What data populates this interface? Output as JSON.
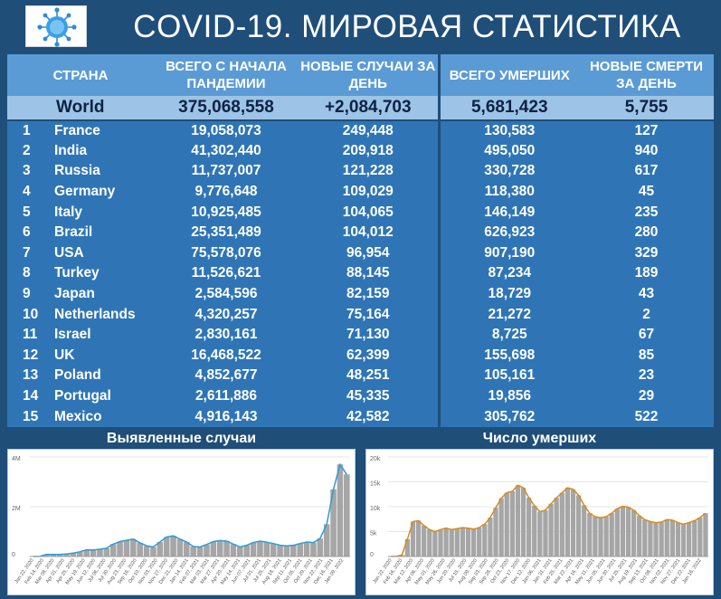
{
  "header": {
    "title": "COVID-19. МИРОВАЯ СТАТИСТИКА",
    "logo_icon": "coronavirus-icon"
  },
  "table": {
    "columns": {
      "country": "СТРАНА",
      "total_cases": "ВСЕГО С НАЧАЛА ПАНДЕМИИ",
      "new_cases": "НОВЫЕ СЛУЧАИ ЗА ДЕНЬ",
      "total_deaths": "ВСЕГО УМЕРШИХ",
      "new_deaths": "НОВЫЕ СМЕРТИ ЗА ДЕНЬ"
    },
    "world": {
      "name": "World",
      "total_cases": "375,068,558",
      "new_cases": "+2,084,703",
      "total_deaths": "5,681,423",
      "new_deaths": "5,755"
    },
    "rows": [
      {
        "rank": "1",
        "country": "France",
        "total_cases": "19,058,073",
        "new_cases": "249,448",
        "total_deaths": "130,583",
        "new_deaths": "127"
      },
      {
        "rank": "2",
        "country": "India",
        "total_cases": "41,302,440",
        "new_cases": "209,918",
        "total_deaths": "495,050",
        "new_deaths": "940"
      },
      {
        "rank": "3",
        "country": "Russia",
        "total_cases": "11,737,007",
        "new_cases": "121,228",
        "total_deaths": "330,728",
        "new_deaths": "617"
      },
      {
        "rank": "4",
        "country": "Germany",
        "total_cases": "9,776,648",
        "new_cases": "109,029",
        "total_deaths": "118,380",
        "new_deaths": "45"
      },
      {
        "rank": "5",
        "country": "Italy",
        "total_cases": "10,925,485",
        "new_cases": "104,065",
        "total_deaths": "146,149",
        "new_deaths": "235"
      },
      {
        "rank": "6",
        "country": "Brazil",
        "total_cases": "25,351,489",
        "new_cases": "104,012",
        "total_deaths": "626,923",
        "new_deaths": "280"
      },
      {
        "rank": "7",
        "country": "USA",
        "total_cases": "75,578,076",
        "new_cases": "96,954",
        "total_deaths": "907,190",
        "new_deaths": "329"
      },
      {
        "rank": "8",
        "country": "Turkey",
        "total_cases": "11,526,621",
        "new_cases": "88,145",
        "total_deaths": "87,234",
        "new_deaths": "189"
      },
      {
        "rank": "9",
        "country": "Japan",
        "total_cases": "2,584,596",
        "new_cases": "82,159",
        "total_deaths": "18,729",
        "new_deaths": "43"
      },
      {
        "rank": "10",
        "country": "Netherlands",
        "total_cases": "4,320,257",
        "new_cases": "75,164",
        "total_deaths": "21,272",
        "new_deaths": "2"
      },
      {
        "rank": "11",
        "country": "Israel",
        "total_cases": "2,830,161",
        "new_cases": "71,130",
        "total_deaths": "8,725",
        "new_deaths": "67"
      },
      {
        "rank": "12",
        "country": "UK",
        "total_cases": "16,468,522",
        "new_cases": "62,399",
        "total_deaths": "155,698",
        "new_deaths": "85"
      },
      {
        "rank": "13",
        "country": "Poland",
        "total_cases": "4,852,677",
        "new_cases": "48,251",
        "total_deaths": "105,161",
        "new_deaths": "23"
      },
      {
        "rank": "14",
        "country": "Portugal",
        "total_cases": "2,611,886",
        "new_cases": "45,335",
        "total_deaths": "19,856",
        "new_deaths": "29"
      },
      {
        "rank": "15",
        "country": "Mexico",
        "total_cases": "4,916,143",
        "new_cases": "42,582",
        "total_deaths": "305,762",
        "new_deaths": "522"
      }
    ]
  },
  "chart_data": [
    {
      "type": "bar",
      "title": "Выявленные случаи",
      "bar_color": "#a6a6a6",
      "line_color": "#2e9bd6",
      "y_ticks": [
        "0",
        "2M",
        "4M"
      ],
      "ylim": [
        0,
        4000000
      ],
      "x_ticks": [
        "Jan 22, 2020",
        "Feb 14, 2020",
        "Mar 08, 2020",
        "Apr 01, 2020",
        "Apr 25, 2020",
        "May 19, 2020",
        "Jun 12, 2020",
        "Jul 06, 2020",
        "Jul 30, 2020",
        "Aug 23, 2020",
        "Sep 16, 2020",
        "Oct 10, 2020",
        "Nov 03, 2020",
        "Nov 27, 2020",
        "Dec 21, 2020",
        "Jan 14, 2021",
        "Feb 07, 2021",
        "Mar 03, 2021",
        "Mar 27, 2021",
        "Apr 20, 2021",
        "May 14, 2021",
        "Jun 07, 2021",
        "Jul 01, 2021",
        "Jul 25, 2021",
        "Aug 18, 2021",
        "Sep 11, 2021",
        "Oct 05, 2021",
        "Oct 29, 2021",
        "Nov 22, 2021",
        "Dec 16, 2021",
        "Jan 09, 2022"
      ],
      "values": [
        0,
        2000,
        80000,
        80000,
        80000,
        100000,
        140000,
        190000,
        270000,
        260000,
        290000,
        330000,
        500000,
        600000,
        650000,
        700000,
        550000,
        430000,
        380000,
        580000,
        780000,
        830000,
        700000,
        580000,
        400000,
        380000,
        480000,
        600000,
        640000,
        620000,
        500000,
        380000,
        450000,
        560000,
        620000,
        570000,
        520000,
        450000,
        430000,
        450000,
        520000,
        580000,
        560000,
        720000,
        1300000,
        2700000,
        3700000,
        3300000
      ]
    },
    {
      "type": "bar",
      "title": "Число умерших",
      "bar_color": "#a6a6a6",
      "line_color": "#d68a1e",
      "y_ticks": [
        "0",
        "5k",
        "10k",
        "15k",
        "20k"
      ],
      "ylim": [
        0,
        20000
      ],
      "x_ticks": [
        "Jan 22, 2020",
        "Feb 16, 2020",
        "Mar 12, 2020",
        "Apr 06, 2020",
        "May 01, 2020",
        "May 26, 2020",
        "Jun 20, 2020",
        "Jul 15, 2020",
        "Aug 09, 2020",
        "Sep 03, 2020",
        "Sep 28, 2020",
        "Oct 23, 2020",
        "Nov 17, 2020",
        "Dec 12, 2020",
        "Jan 06, 2021",
        "Jan 31, 2021",
        "Feb 25, 2021",
        "Mar 22, 2021",
        "Apr 16, 2021",
        "May 11, 2021",
        "Jun 05, 2021",
        "Jun 30, 2021",
        "Jul 25, 2021",
        "Aug 19, 2021",
        "Sep 13, 2021",
        "Oct 08, 2021",
        "Nov 02, 2021",
        "Nov 27, 2021",
        "Dec 22, 2021",
        "Jan 16, 2022"
      ],
      "values": [
        0,
        50,
        300,
        3500,
        7000,
        7200,
        6200,
        5400,
        5000,
        5400,
        5700,
        5400,
        5600,
        5800,
        5700,
        5500,
        5800,
        6500,
        7800,
        9800,
        11700,
        12800,
        13100,
        14300,
        13800,
        11800,
        10200,
        9000,
        9300,
        10600,
        11800,
        12800,
        13800,
        13500,
        12300,
        10300,
        8700,
        8000,
        7800,
        8000,
        8700,
        9600,
        10100,
        9900,
        9300,
        8200,
        7400,
        7000,
        6800,
        6900,
        7400,
        7300,
        6800,
        6500,
        6800,
        7200,
        7800,
        8700
      ]
    }
  ]
}
